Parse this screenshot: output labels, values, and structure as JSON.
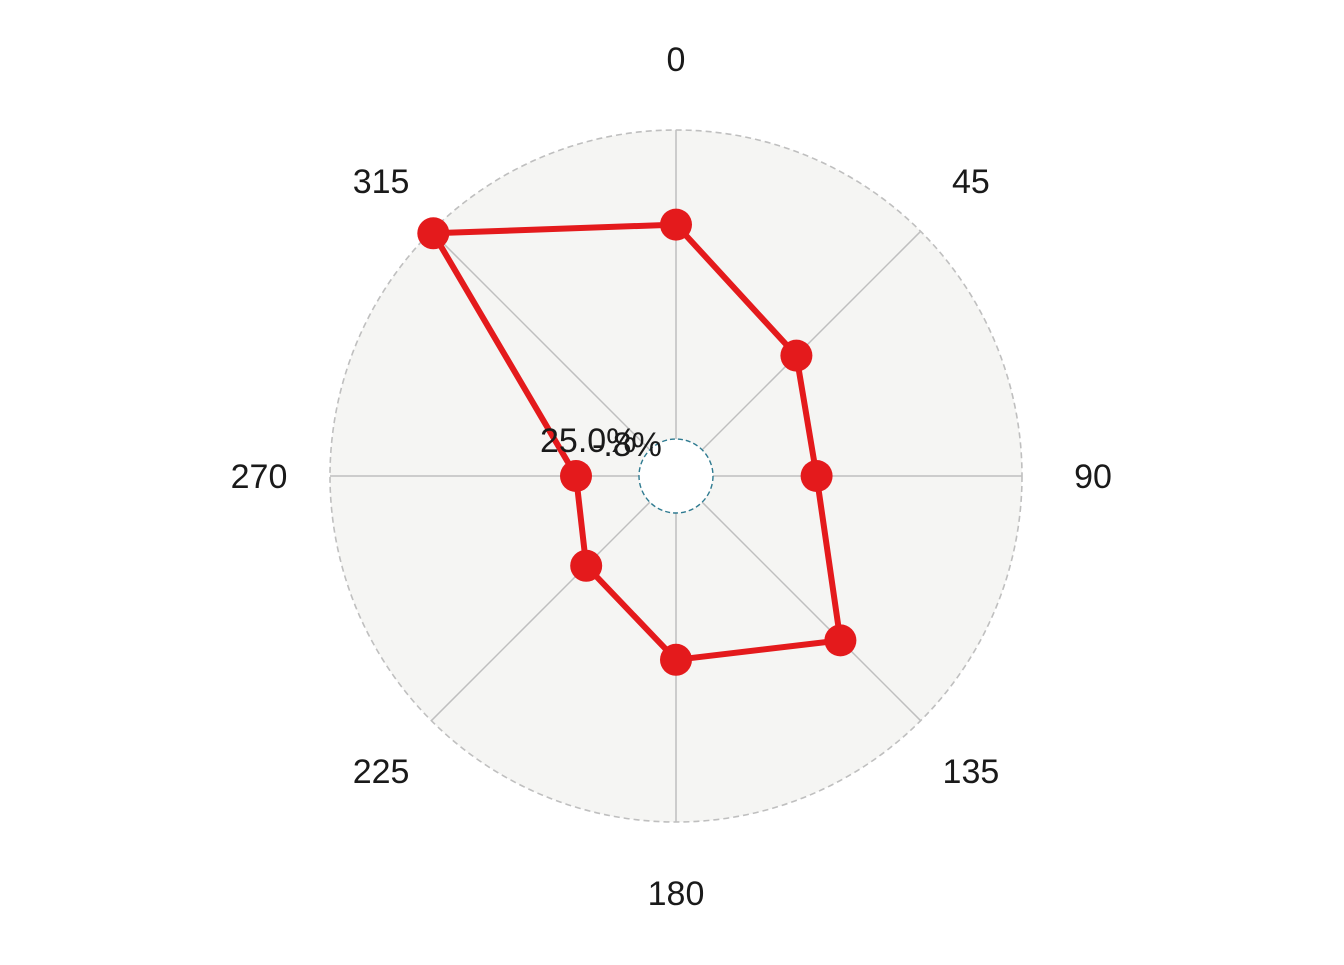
{
  "chart_data": {
    "type": "radar",
    "categories": [
      "0",
      "45",
      "90",
      "135",
      "180",
      "225",
      "270",
      "315"
    ],
    "angles_deg": [
      0,
      45,
      90,
      135,
      180,
      225,
      270,
      315
    ],
    "series": [
      {
        "values": [
          65,
          35,
          24,
          58,
          40,
          19,
          9,
          99
        ],
        "color": "#E41A1C"
      }
    ],
    "rlim": [
      -28,
      100
    ],
    "grid_labels": [
      "25.0%",
      "-.8%"
    ],
    "plot_background": "#F5F5F3",
    "grid_line_color": "#BFBFBF",
    "outer_circle_color": "#BFBFBF",
    "inner_circle_color": "#2E7A90"
  }
}
